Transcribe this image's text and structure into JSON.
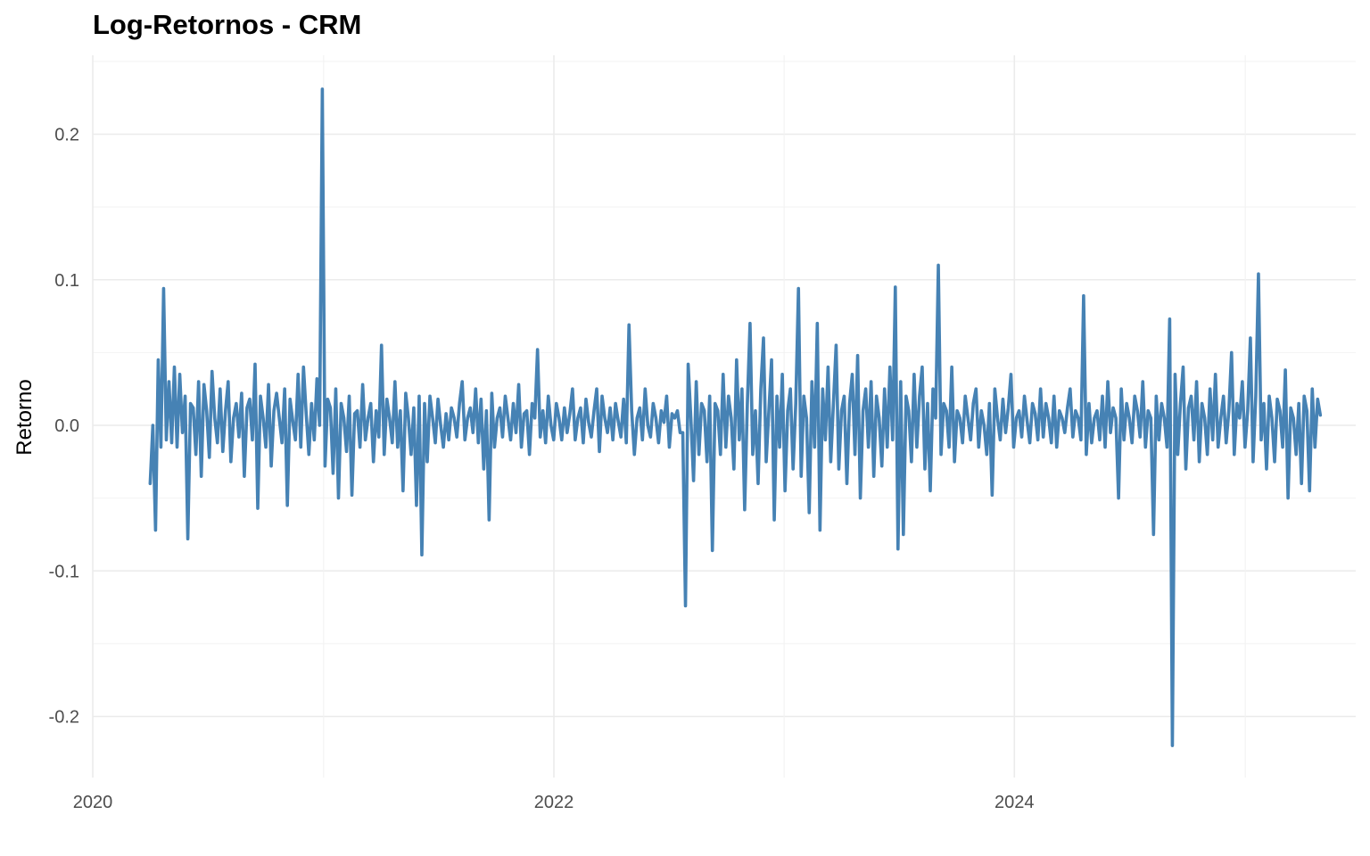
{
  "chart_data": {
    "type": "line",
    "title": "Log-Retornos - CRM",
    "xlabel": "",
    "ylabel": "Retorno",
    "x_ticks": [
      "2020",
      "2022",
      "2024"
    ],
    "y_ticks": [
      "-0.2",
      "-0.1",
      "0.0",
      "0.1",
      "0.2"
    ],
    "ylim": [
      -0.24,
      0.255
    ],
    "xlim": [
      "2020-01-01",
      "2025-06-30"
    ],
    "grid": true,
    "line_color": "#4682B4",
    "series": [
      {
        "x_start": "2020-04-01",
        "x_end": "2025-04-30",
        "values": [
          -0.04,
          0.0,
          -0.072,
          0.045,
          -0.015,
          0.094,
          -0.01,
          0.03,
          -0.012,
          0.04,
          -0.015,
          0.035,
          -0.005,
          0.02,
          -0.078,
          0.015,
          0.012,
          -0.02,
          0.03,
          -0.035,
          0.028,
          0.01,
          -0.022,
          0.037,
          0.005,
          -0.012,
          0.025,
          -0.018,
          0.01,
          0.03,
          -0.025,
          0.005,
          0.015,
          -0.008,
          0.022,
          -0.035,
          0.012,
          0.018,
          -0.01,
          0.042,
          -0.057,
          0.02,
          0.005,
          -0.015,
          0.028,
          -0.028,
          0.01,
          0.022,
          0.005,
          -0.012,
          0.025,
          -0.055,
          0.018,
          0.003,
          -0.01,
          0.035,
          -0.015,
          0.04,
          0.008,
          -0.02,
          0.015,
          -0.01,
          0.032,
          0.0,
          0.231,
          -0.028,
          0.018,
          0.012,
          -0.033,
          0.025,
          -0.05,
          0.015,
          0.005,
          -0.018,
          0.02,
          -0.048,
          0.008,
          0.01,
          -0.015,
          0.028,
          -0.01,
          0.005,
          0.015,
          -0.025,
          0.01,
          -0.008,
          0.055,
          -0.02,
          0.018,
          0.005,
          -0.012,
          0.03,
          -0.015,
          0.01,
          -0.045,
          0.022,
          0.005,
          -0.02,
          0.012,
          -0.055,
          0.02,
          -0.089,
          0.015,
          -0.025,
          0.02,
          0.005,
          -0.012,
          0.018,
          0.0,
          -0.015,
          0.008,
          -0.01,
          0.012,
          0.005,
          -0.008,
          0.015,
          0.03,
          -0.01,
          0.005,
          0.012,
          -0.005,
          0.025,
          -0.012,
          0.018,
          -0.03,
          0.01,
          -0.065,
          0.022,
          -0.015,
          0.005,
          0.012,
          -0.008,
          0.02,
          0.005,
          -0.01,
          0.015,
          -0.005,
          0.028,
          -0.015,
          0.008,
          0.01,
          -0.02,
          0.015,
          0.005,
          0.052,
          -0.008,
          0.01,
          -0.012,
          0.02,
          0.0,
          -0.01,
          0.015,
          0.005,
          -0.01,
          0.012,
          -0.005,
          0.008,
          0.025,
          -0.01,
          0.005,
          0.012,
          -0.012,
          0.018,
          0.002,
          -0.008,
          0.01,
          0.025,
          -0.018,
          0.02,
          0.005,
          -0.005,
          0.012,
          -0.01,
          0.015,
          0.003,
          -0.008,
          0.018,
          -0.012,
          0.069,
          0.01,
          -0.02,
          0.005,
          0.012,
          -0.01,
          0.025,
          0.0,
          -0.008,
          0.015,
          0.005,
          -0.012,
          0.01,
          0.002,
          0.02,
          -0.015,
          0.008,
          0.005,
          0.01,
          -0.005,
          -0.005,
          -0.124,
          0.042,
          0.005,
          -0.038,
          0.03,
          -0.02,
          0.015,
          0.01,
          -0.025,
          0.02,
          -0.086,
          0.015,
          0.01,
          -0.02,
          0.035,
          -0.015,
          0.02,
          0.005,
          -0.03,
          0.045,
          -0.01,
          0.025,
          -0.058,
          0.015,
          0.07,
          -0.02,
          0.01,
          -0.04,
          0.025,
          0.06,
          -0.025,
          0.01,
          0.045,
          -0.065,
          0.02,
          -0.015,
          0.035,
          -0.045,
          0.01,
          0.025,
          -0.03,
          0.015,
          0.094,
          -0.035,
          0.02,
          0.005,
          -0.06,
          0.03,
          -0.015,
          0.07,
          -0.072,
          0.025,
          -0.01,
          0.04,
          -0.025,
          0.015,
          0.055,
          -0.03,
          0.01,
          0.02,
          -0.04,
          0.015,
          0.035,
          -0.02,
          0.048,
          -0.05,
          0.01,
          0.025,
          -0.015,
          0.03,
          -0.035,
          0.02,
          0.005,
          -0.028,
          0.025,
          -0.015,
          0.04,
          -0.01,
          0.095,
          -0.085,
          0.03,
          -0.075,
          0.02,
          0.01,
          -0.025,
          0.035,
          -0.015,
          0.02,
          0.04,
          -0.03,
          0.015,
          -0.045,
          0.025,
          0.005,
          0.11,
          -0.02,
          0.015,
          0.01,
          -0.015,
          0.04,
          -0.025,
          0.01,
          0.005,
          -0.012,
          0.02,
          0.005,
          -0.01,
          0.015,
          0.025,
          -0.015,
          0.01,
          0.0,
          -0.02,
          0.015,
          -0.048,
          0.025,
          0.005,
          -0.01,
          0.018,
          -0.005,
          0.012,
          0.035,
          -0.015,
          0.005,
          0.01,
          -0.008,
          0.02,
          0.003,
          -0.012,
          0.015,
          0.008,
          -0.01,
          0.025,
          -0.008,
          0.015,
          0.005,
          -0.012,
          0.02,
          -0.015,
          0.01,
          0.005,
          -0.005,
          0.012,
          0.025,
          -0.008,
          0.01,
          0.005,
          -0.01,
          0.089,
          -0.02,
          0.015,
          -0.012,
          0.005,
          0.01,
          -0.01,
          0.02,
          -0.015,
          0.03,
          -0.005,
          0.012,
          0.005,
          -0.05,
          0.025,
          -0.01,
          0.015,
          0.005,
          -0.012,
          0.02,
          0.01,
          -0.008,
          0.03,
          -0.015,
          0.01,
          0.005,
          -0.075,
          0.02,
          -0.01,
          0.015,
          0.005,
          -0.015,
          0.073,
          -0.22,
          0.035,
          -0.02,
          0.015,
          0.04,
          -0.03,
          0.012,
          0.02,
          -0.01,
          0.03,
          -0.025,
          0.015,
          0.005,
          -0.02,
          0.025,
          -0.01,
          0.035,
          -0.015,
          0.005,
          0.02,
          -0.012,
          0.01,
          0.05,
          -0.02,
          0.015,
          0.005,
          0.03,
          -0.015,
          0.01,
          0.06,
          -0.025,
          0.02,
          0.104,
          -0.01,
          0.015,
          -0.03,
          0.02,
          0.005,
          -0.025,
          0.018,
          0.01,
          -0.015,
          0.038,
          -0.05,
          0.012,
          0.005,
          -0.02,
          0.015,
          -0.04,
          0.02,
          0.01,
          -0.045,
          0.025,
          -0.015,
          0.018,
          0.007
        ]
      }
    ]
  }
}
